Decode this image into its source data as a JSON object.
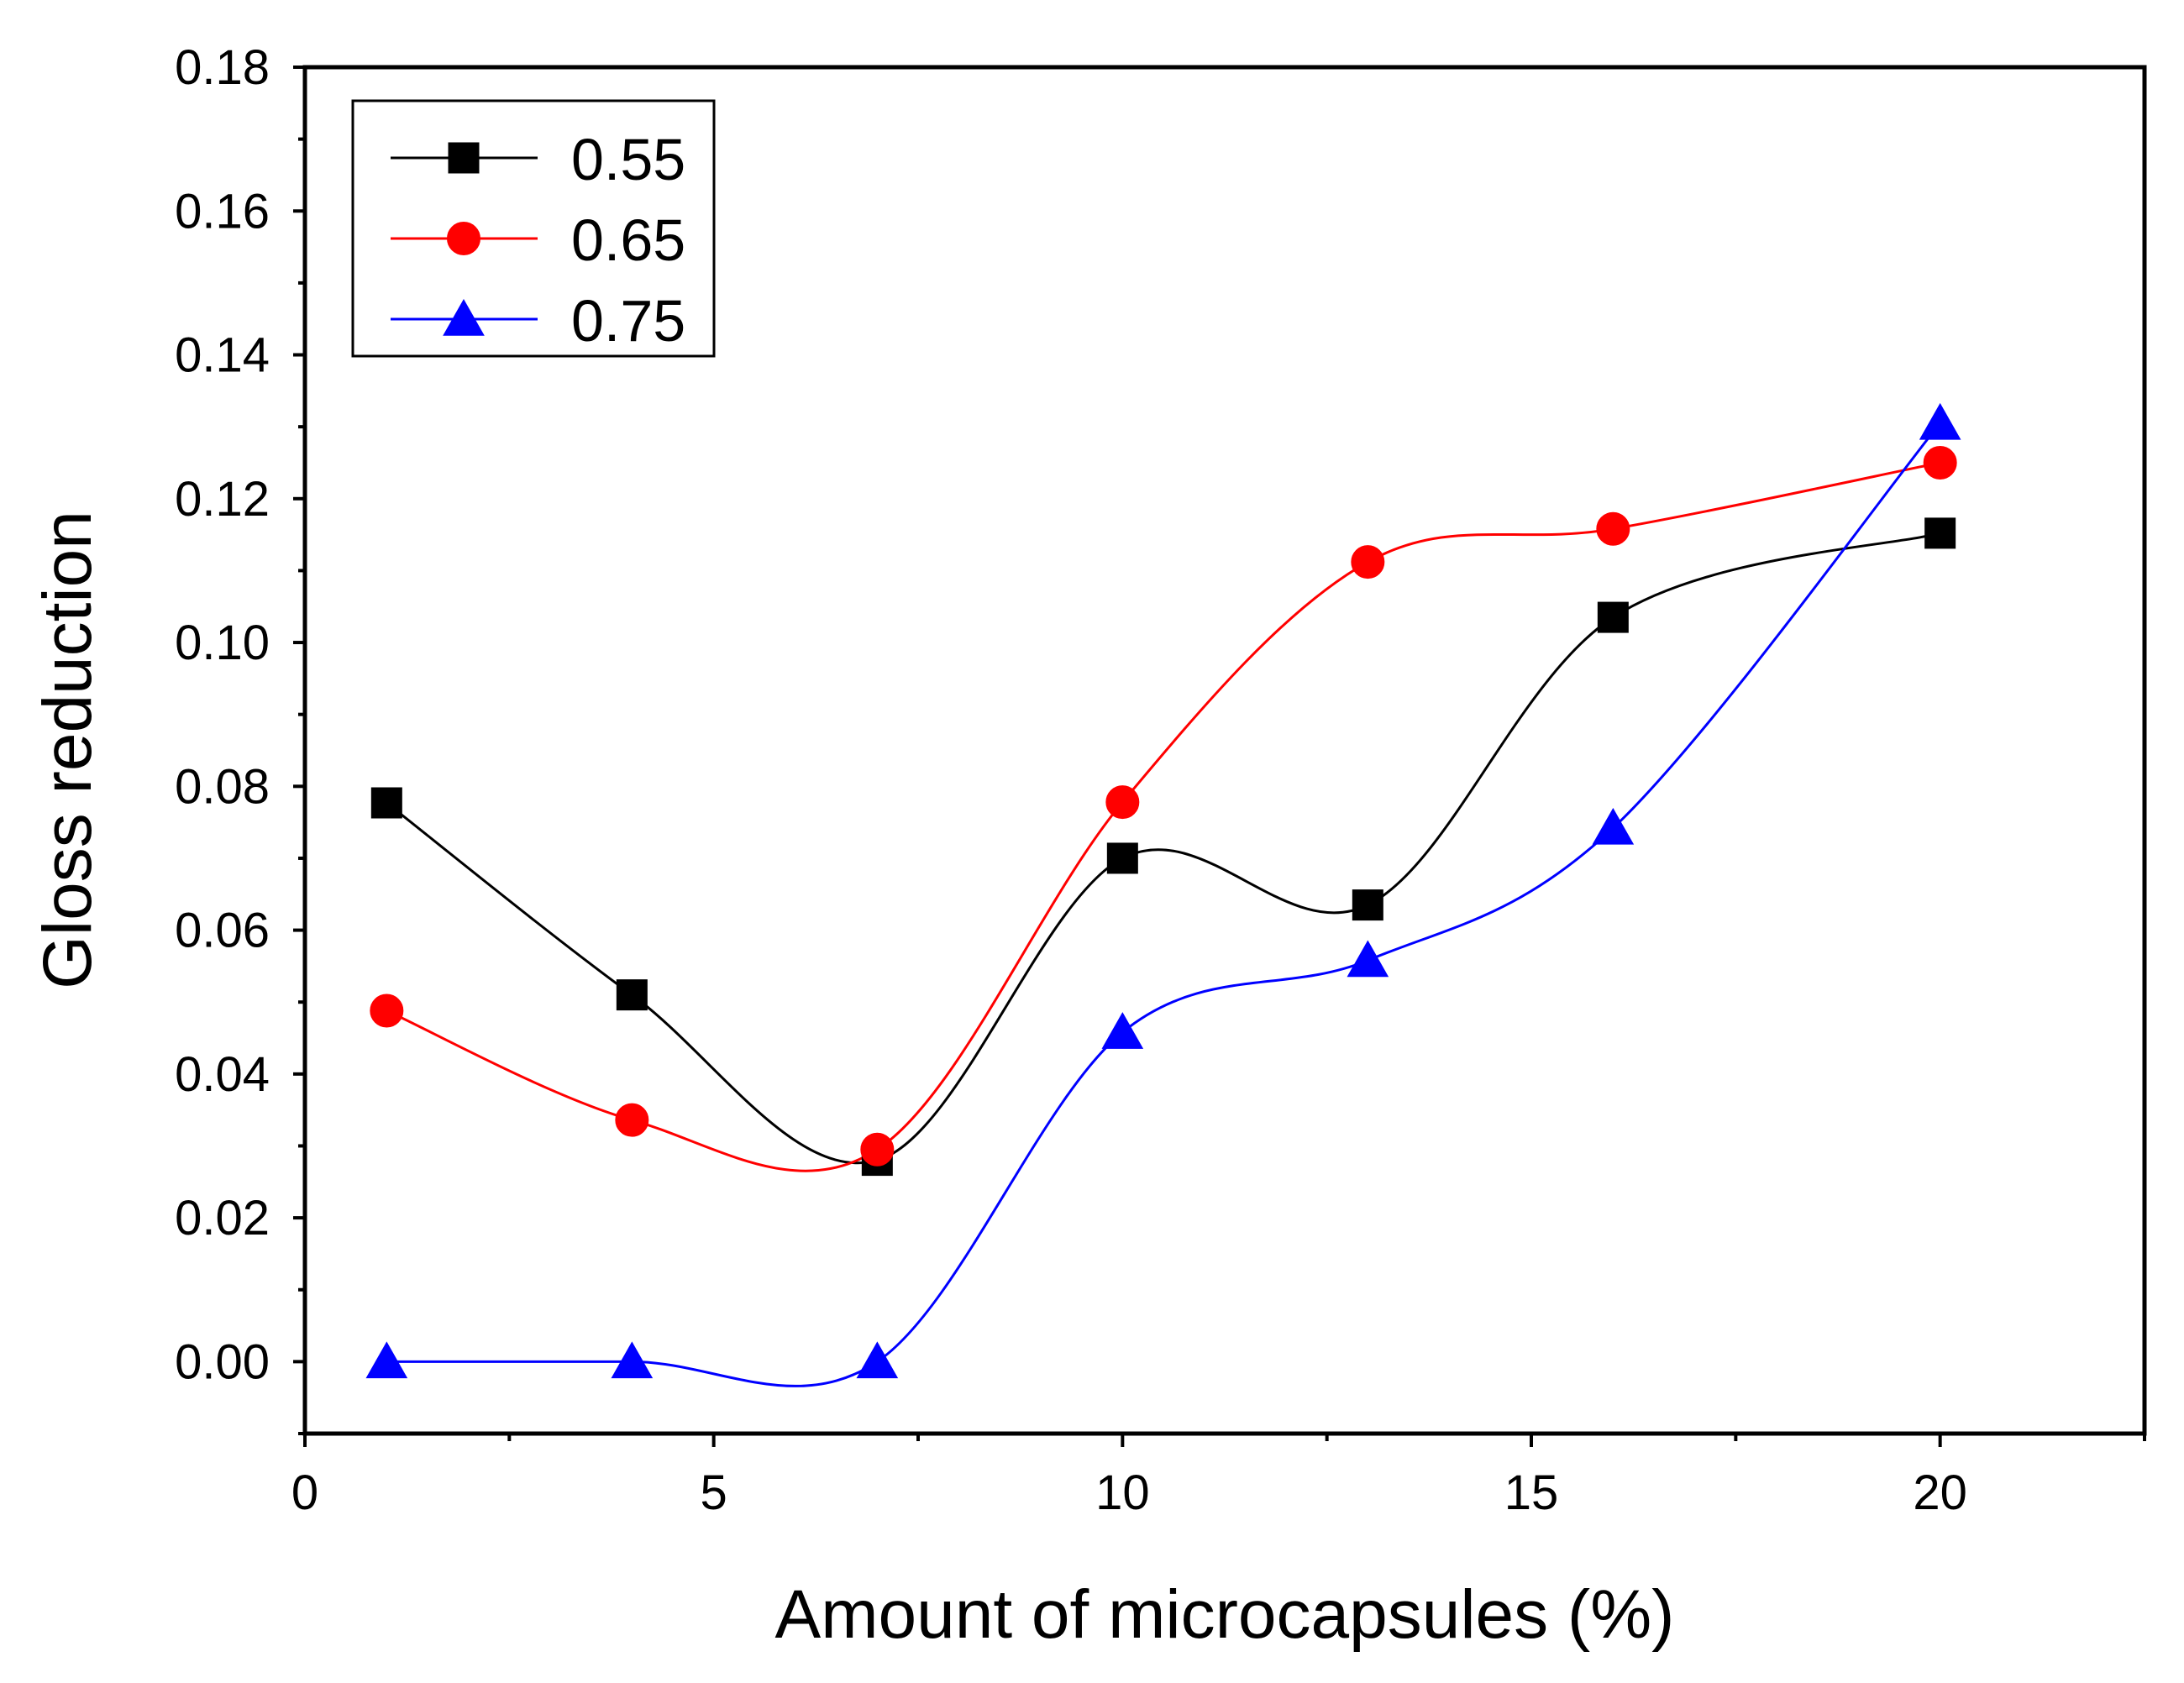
{
  "chart_data": {
    "type": "line",
    "xlabel": "Amount of microcapsules (%)",
    "ylabel": "Gloss reduction",
    "xlim": [
      0,
      22.5
    ],
    "ylim": [
      -0.01,
      0.18
    ],
    "x_ticks": [
      0,
      5,
      10,
      15,
      20
    ],
    "x_tick_labels": [
      "0",
      "5",
      "10",
      "15",
      "20"
    ],
    "y_ticks": [
      0.0,
      0.02,
      0.04,
      0.06,
      0.08,
      0.1,
      0.12,
      0.14,
      0.16,
      0.18
    ],
    "y_tick_labels": [
      "0.00",
      "0.02",
      "0.04",
      "0.06",
      "0.08",
      "0.10",
      "0.12",
      "0.14",
      "0.16",
      "0.18"
    ],
    "legend_position": "top-left",
    "curve": "smooth-spline",
    "x": [
      1,
      4,
      7,
      10,
      13,
      16,
      20
    ],
    "series": [
      {
        "name": "0.55",
        "marker": "square",
        "color": "#000000",
        "values": [
          0.0777,
          0.051,
          0.028,
          0.07,
          0.0635,
          0.1035,
          0.1152
        ]
      },
      {
        "name": "0.65",
        "marker": "circle",
        "color": "#ff0000",
        "values": [
          0.0488,
          0.0336,
          0.0295,
          0.0778,
          0.1112,
          0.1158,
          0.125
        ]
      },
      {
        "name": "0.75",
        "marker": "triangle",
        "color": "#0000ff",
        "values": [
          0.0,
          0.0,
          0.0,
          0.0458,
          0.0558,
          0.0742,
          0.1305
        ]
      }
    ]
  }
}
